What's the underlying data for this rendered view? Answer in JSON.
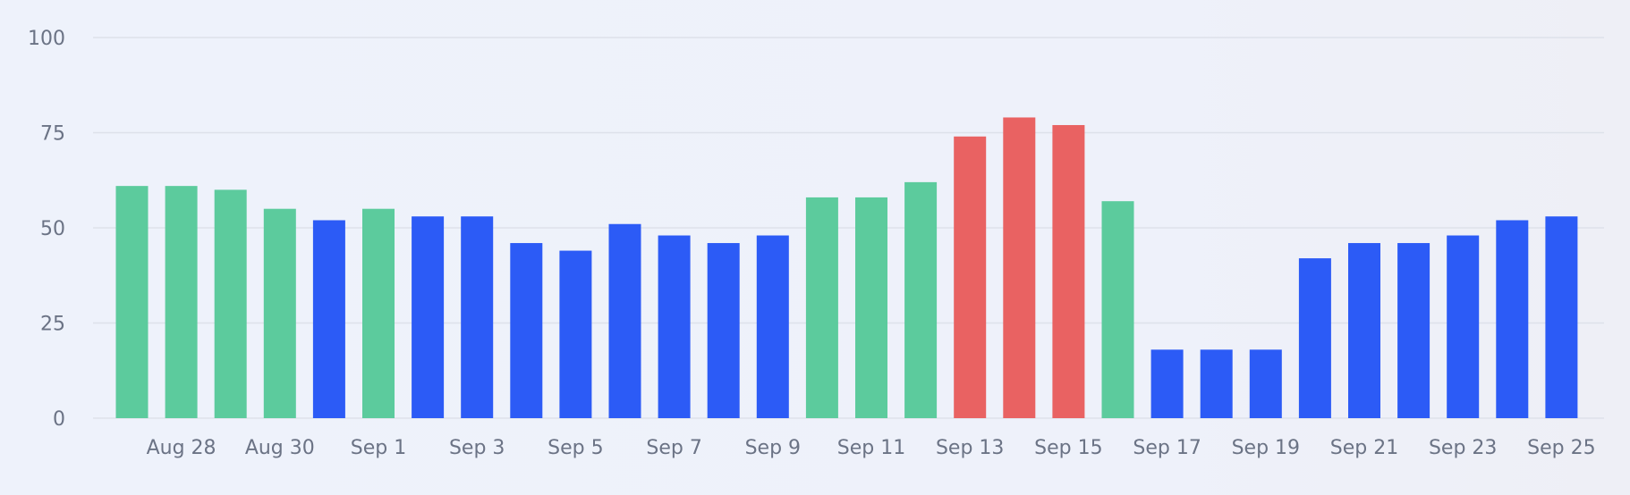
{
  "chart_data": {
    "type": "bar",
    "categories": [
      "Aug 27",
      "Aug 28",
      "Aug 29",
      "Aug 30",
      "Aug 31",
      "Sep 1",
      "Sep 2",
      "Sep 3",
      "Sep 4",
      "Sep 5",
      "Sep 6",
      "Sep 7",
      "Sep 8",
      "Sep 9",
      "Sep 10",
      "Sep 11",
      "Sep 12",
      "Sep 13",
      "Sep 14",
      "Sep 15",
      "Sep 16",
      "Sep 17",
      "Sep 18",
      "Sep 19",
      "Sep 20",
      "Sep 21",
      "Sep 22",
      "Sep 23",
      "Sep 24",
      "Sep 25"
    ],
    "values": [
      61,
      61,
      60,
      55,
      52,
      55,
      53,
      53,
      46,
      44,
      51,
      48,
      46,
      48,
      58,
      58,
      62,
      74,
      79,
      77,
      57,
      18,
      18,
      18,
      42,
      46,
      46,
      48,
      52,
      53
    ],
    "status": [
      "good",
      "good",
      "good",
      "good",
      "normal",
      "good",
      "normal",
      "normal",
      "normal",
      "normal",
      "normal",
      "normal",
      "normal",
      "normal",
      "good",
      "good",
      "good",
      "high",
      "high",
      "high",
      "good",
      "normal",
      "normal",
      "normal",
      "normal",
      "normal",
      "normal",
      "normal",
      "normal",
      "normal"
    ],
    "x_tick_labels": [
      "",
      "Aug 28",
      "",
      "Aug 30",
      "",
      "Sep 1",
      "",
      "Sep 3",
      "",
      "Sep 5",
      "",
      "Sep 7",
      "",
      "Sep 9",
      "",
      "Sep 11",
      "",
      "Sep 13",
      "",
      "Sep 15",
      "",
      "Sep 17",
      "",
      "Sep 19",
      "",
      "Sep 21",
      "",
      "Sep 23",
      "",
      "Sep 25"
    ],
    "y_ticks": [
      0,
      25,
      50,
      75,
      100
    ],
    "ylim": [
      0,
      100
    ],
    "grid": true,
    "title": "",
    "xlabel": "",
    "ylabel": ""
  },
  "colors": {
    "good": "#5ccb9d",
    "normal": "#2c5bf6",
    "high": "#e96262",
    "grid": "#dde1ea",
    "tick_text": "#6b7385"
  }
}
